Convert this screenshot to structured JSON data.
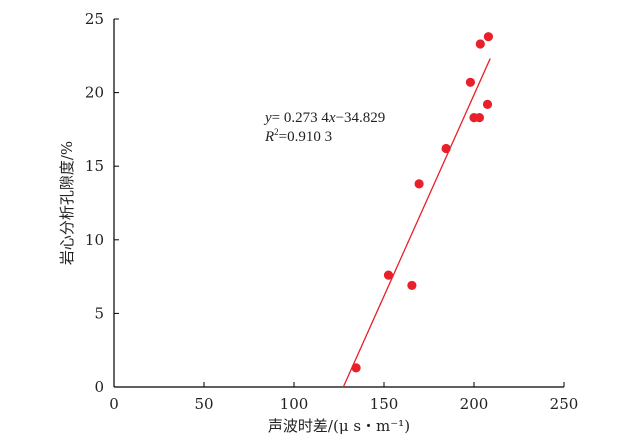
{
  "chart_data": {
    "type": "scatter",
    "title": "",
    "xlabel": "声波时差/(μ s・m⁻¹)",
    "ylabel": "岩心分析孔隙度/%",
    "xlim": [
      0,
      250
    ],
    "ylim": [
      0,
      25
    ],
    "x_ticks": [
      "0",
      "50",
      "100",
      "150",
      "200",
      "250"
    ],
    "y_ticks": [
      "0",
      "5",
      "10",
      "15",
      "20",
      "25"
    ],
    "grid": false,
    "legend": "none",
    "series": [
      {
        "x": [
          134.5,
          152.5,
          165.5,
          169.5,
          184.5,
          198,
          200,
          203,
          203.5,
          207.5,
          208
        ],
        "y": [
          1.3,
          7.6,
          6.9,
          13.8,
          16.2,
          20.7,
          18.3,
          18.3,
          23.3,
          19.2,
          23.8
        ],
        "color": "#e8202a"
      }
    ],
    "trendline": {
      "slope": 0.2734,
      "intercept": -34.829,
      "x_range": [
        127.4,
        209
      ],
      "color": "#e8202a"
    },
    "annotations": {
      "equation_prefix": "y",
      "equation_mid": "= 0.273 4",
      "equation_var": "x",
      "equation_suffix": "−34.829",
      "r2_letter": "R",
      "r2_sup": "2",
      "r2_value": "=0.910 3"
    }
  }
}
